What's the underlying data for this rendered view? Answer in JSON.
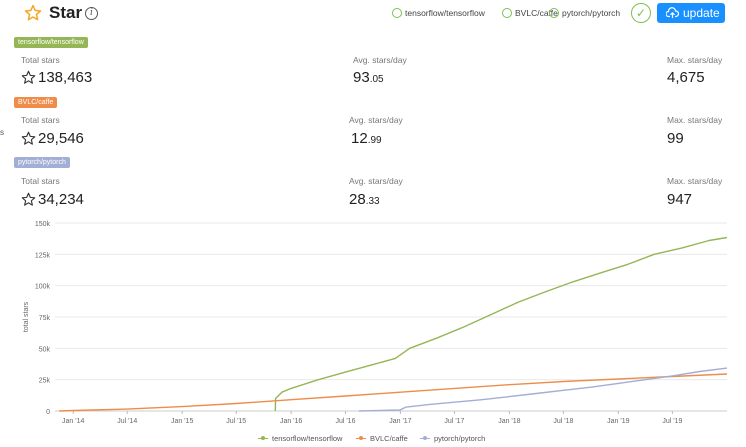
{
  "header": {
    "title": "Star",
    "info_icon": "info-icon",
    "star_icon": "star-outline-icon",
    "repos": [
      "tensorflow/tensorflow",
      "BVLC/caffe",
      "pytorch/pytorch"
    ],
    "update_label": "update",
    "check_icon": "check-icon",
    "cloud_icon": "cloud-upload-icon"
  },
  "edge_mark": "s",
  "stats": [
    {
      "repo": "tensorflow/tensorflow",
      "color": "#94b655",
      "total_label": "Total stars",
      "total": "138,463",
      "avg_label": "Avg. stars/day",
      "avg_int": "93",
      "avg_dec": ".05",
      "max_label": "Max. stars/day",
      "max": "4,675"
    },
    {
      "repo": "BVLC/caffe",
      "color": "#ef8c4a",
      "total_label": "Total stars",
      "total": "29,546",
      "avg_label": "Avg. stars/day",
      "avg_int": "12",
      "avg_dec": ".99",
      "max_label": "Max. stars/day",
      "max": "99"
    },
    {
      "repo": "pytorch/pytorch",
      "color": "#a2aed6",
      "total_label": "Total stars",
      "total": "34,234",
      "avg_label": "Avg. stars/day",
      "avg_int": "28",
      "avg_dec": ".33",
      "max_label": "Max. stars/day",
      "max": "947"
    }
  ],
  "chart_data": {
    "type": "line",
    "title": "",
    "xlabel": "",
    "ylabel": "total stars",
    "ylim": [
      0,
      150000
    ],
    "xlim": [
      "2013-11-01",
      "2019-12-31"
    ],
    "yticks": [
      0,
      25000,
      50000,
      75000,
      100000,
      125000,
      150000
    ],
    "ytick_labels": [
      "0",
      "25k",
      "50k",
      "75k",
      "100k",
      "125k",
      "150k"
    ],
    "xticks": [
      "2014-01-01",
      "2014-07-01",
      "2015-01-01",
      "2015-07-01",
      "2016-01-01",
      "2016-07-01",
      "2017-01-01",
      "2017-07-01",
      "2018-01-01",
      "2018-07-01",
      "2019-01-01",
      "2019-07-01"
    ],
    "xtick_labels": [
      "Jan '14",
      "Jul '14",
      "Jan '15",
      "Jul '15",
      "Jan '16",
      "Jul '16",
      "Jan '17",
      "Jul '17",
      "Jan '18",
      "Jul '18",
      "Jan '19",
      "Jul '19"
    ],
    "grid": true,
    "legend": "bottom",
    "series": [
      {
        "name": "tensorflow/tensorflow",
        "color": "#94b655",
        "points": [
          [
            "2015-11-09",
            0
          ],
          [
            "2015-11-10",
            10000
          ],
          [
            "2015-12-01",
            15000
          ],
          [
            "2016-01-01",
            18000
          ],
          [
            "2016-04-01",
            25000
          ],
          [
            "2016-07-01",
            31000
          ],
          [
            "2016-10-01",
            37000
          ],
          [
            "2016-12-15",
            42000
          ],
          [
            "2017-02-01",
            50000
          ],
          [
            "2017-05-01",
            58000
          ],
          [
            "2017-08-01",
            67000
          ],
          [
            "2017-11-01",
            77000
          ],
          [
            "2018-02-01",
            87000
          ],
          [
            "2018-05-01",
            95000
          ],
          [
            "2018-08-01",
            103000
          ],
          [
            "2018-11-01",
            110000
          ],
          [
            "2019-02-01",
            117000
          ],
          [
            "2019-05-01",
            125000
          ],
          [
            "2019-08-01",
            130000
          ],
          [
            "2019-11-01",
            136000
          ],
          [
            "2019-12-31",
            138463
          ]
        ]
      },
      {
        "name": "BVLC/caffe",
        "color": "#ef8c4a",
        "points": [
          [
            "2013-11-15",
            0
          ],
          [
            "2014-01-01",
            400
          ],
          [
            "2014-07-01",
            1500
          ],
          [
            "2015-01-01",
            3500
          ],
          [
            "2015-07-01",
            6000
          ],
          [
            "2016-01-01",
            9000
          ],
          [
            "2016-07-01",
            12000
          ],
          [
            "2017-01-01",
            15000
          ],
          [
            "2017-07-01",
            18000
          ],
          [
            "2018-01-01",
            21000
          ],
          [
            "2018-07-01",
            23500
          ],
          [
            "2019-01-01",
            25500
          ],
          [
            "2019-07-01",
            27500
          ],
          [
            "2019-12-31",
            29546
          ]
        ]
      },
      {
        "name": "pytorch/pytorch",
        "color": "#a2aed6",
        "points": [
          [
            "2016-08-15",
            0
          ],
          [
            "2016-12-31",
            800
          ],
          [
            "2017-01-18",
            3000
          ],
          [
            "2017-04-01",
            5000
          ],
          [
            "2017-07-01",
            7000
          ],
          [
            "2017-10-01",
            9000
          ],
          [
            "2018-01-01",
            11500
          ],
          [
            "2018-04-01",
            14000
          ],
          [
            "2018-07-01",
            16500
          ],
          [
            "2018-10-01",
            19000
          ],
          [
            "2019-01-01",
            22000
          ],
          [
            "2019-04-01",
            25000
          ],
          [
            "2019-07-01",
            28000
          ],
          [
            "2019-10-01",
            31500
          ],
          [
            "2019-12-31",
            34234
          ]
        ]
      }
    ]
  }
}
